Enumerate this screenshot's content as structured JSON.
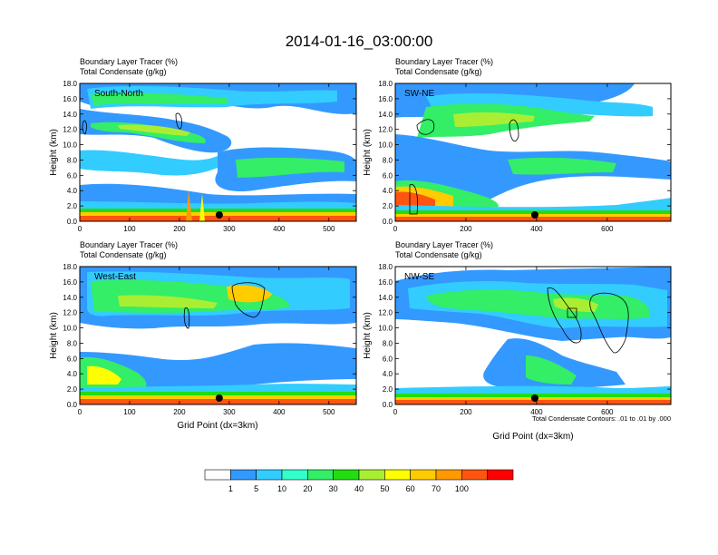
{
  "title": "2014-01-16_03:00:00",
  "colors": {
    "levels": [
      "#ffffff",
      "#3399ff",
      "#33ccff",
      "#33ffcc",
      "#33ee66",
      "#22dd11",
      "#aaee33",
      "#ffff00",
      "#ffcc00",
      "#ff9900",
      "#ff5511",
      "#ff0000"
    ],
    "contour": "#000000",
    "marker": "#000000"
  },
  "legend": {
    "labels": [
      "1",
      "5",
      "10",
      "20",
      "30",
      "40",
      "50",
      "60",
      "70",
      "100"
    ]
  },
  "contour_note": "Total Condensate Contours: .01 to .01 by .000",
  "chart_data": [
    {
      "type": "heatmap",
      "id": "south-north",
      "panel_label": "South-North",
      "title_line1": "Boundary Layer Tracer    (%)",
      "title_line2": "Total Condensate    (g/kg)",
      "ylabel": "Height (km)",
      "xlabel": "",
      "xlim": [
        0,
        555
      ],
      "ylim": [
        0,
        18
      ],
      "x_ticks": [
        "0",
        "100",
        "200",
        "300",
        "400",
        "500"
      ],
      "y_ticks": [
        "0.0",
        "2.0",
        "4.0",
        "6.0",
        "8.0",
        "10.0",
        "12.0",
        "14.0",
        "16.0",
        "18.0"
      ],
      "marker_x": 280
    },
    {
      "type": "heatmap",
      "id": "sw-ne",
      "panel_label": "SW-NE",
      "title_line1": "Boundary Layer Tracer    (%)",
      "title_line2": "Total Condensate    (g/kg)",
      "ylabel": "Height (km)",
      "xlabel": "",
      "xlim": [
        0,
        780
      ],
      "ylim": [
        0,
        18
      ],
      "x_ticks": [
        "0",
        "200",
        "400",
        "600"
      ],
      "y_ticks": [
        "0.0",
        "2.0",
        "4.0",
        "6.0",
        "8.0",
        "10.0",
        "12.0",
        "14.0",
        "16.0",
        "18.0"
      ],
      "marker_x": 395
    },
    {
      "type": "heatmap",
      "id": "west-east",
      "panel_label": "West-East",
      "title_line1": "Boundary Layer Tracer    (%)",
      "title_line2": "Total Condensate    (g/kg)",
      "ylabel": "Height (km)",
      "xlabel": "Grid Point (dx=3km)",
      "xlim": [
        0,
        555
      ],
      "ylim": [
        0,
        18
      ],
      "x_ticks": [
        "0",
        "100",
        "200",
        "300",
        "400",
        "500"
      ],
      "y_ticks": [
        "0.0",
        "2.0",
        "4.0",
        "6.0",
        "8.0",
        "10.0",
        "12.0",
        "14.0",
        "16.0",
        "18.0"
      ],
      "marker_x": 280
    },
    {
      "type": "heatmap",
      "id": "nw-se",
      "panel_label": "NW-SE",
      "title_line1": "Boundary Layer Tracer    (%)",
      "title_line2": "Total Condensate    (g/kg)",
      "ylabel": "Height (km)",
      "xlabel": "Grid Point (dx=3km)",
      "xlim": [
        0,
        780
      ],
      "ylim": [
        0,
        18
      ],
      "x_ticks": [
        "0",
        "200",
        "400",
        "600"
      ],
      "y_ticks": [
        "0.0",
        "2.0",
        "4.0",
        "6.0",
        "8.0",
        "10.0",
        "12.0",
        "14.0",
        "16.0",
        "18.0"
      ],
      "marker_x": 395
    }
  ]
}
